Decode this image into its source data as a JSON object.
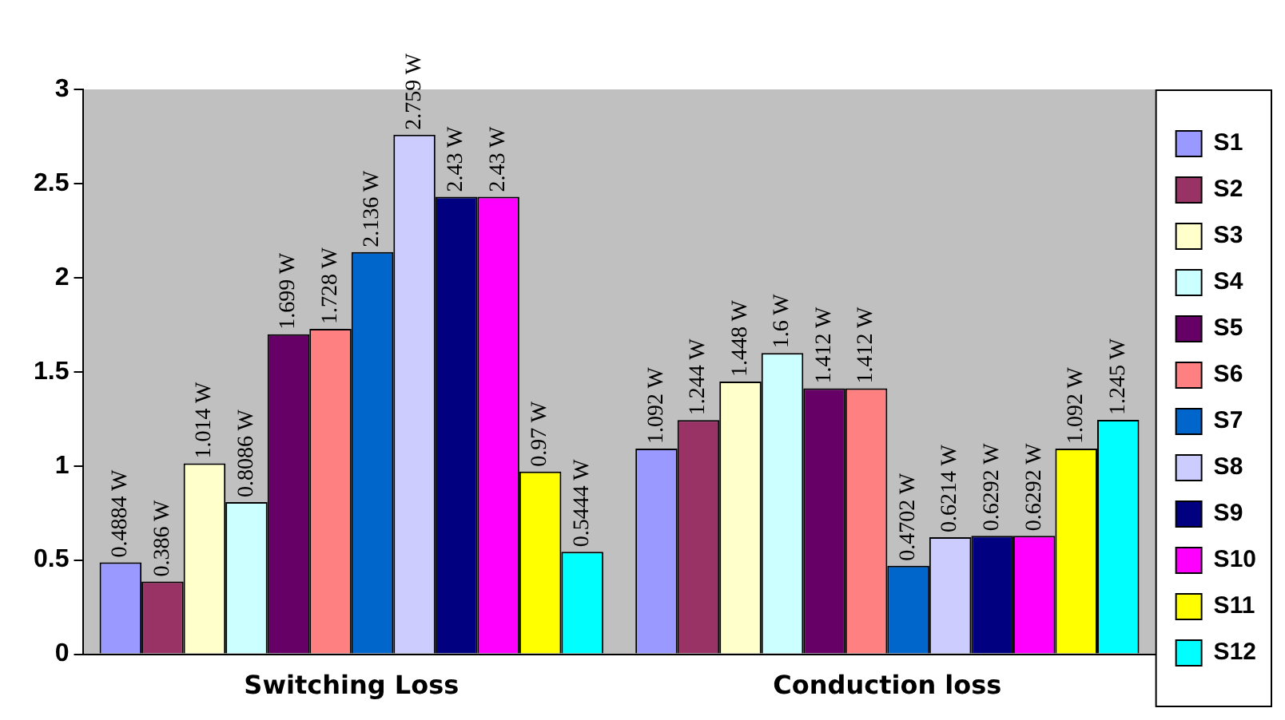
{
  "chart_data": {
    "type": "bar",
    "categories": [
      "Switching Loss",
      "Conduction loss"
    ],
    "series": [
      {
        "name": "S1",
        "color": "#9999ff",
        "values": [
          0.4884,
          1.092
        ],
        "value_labels": [
          "0.4884 W",
          "1.092 W"
        ]
      },
      {
        "name": "S2",
        "color": "#993366",
        "values": [
          0.386,
          1.244
        ],
        "value_labels": [
          "0.386 W",
          "1.244 W"
        ]
      },
      {
        "name": "S3",
        "color": "#ffffcc",
        "values": [
          1.014,
          1.448
        ],
        "value_labels": [
          "1.014 W",
          "1.448 W"
        ]
      },
      {
        "name": "S4",
        "color": "#ccffff",
        "values": [
          0.8086,
          1.6
        ],
        "value_labels": [
          "0.8086 W",
          "1.6 W"
        ]
      },
      {
        "name": "S5",
        "color": "#660066",
        "values": [
          1.699,
          1.412
        ],
        "value_labels": [
          "1.699 W",
          "1.412 W"
        ]
      },
      {
        "name": "S6",
        "color": "#ff8080",
        "values": [
          1.728,
          1.412
        ],
        "value_labels": [
          "1.728 W",
          "1.412 W"
        ]
      },
      {
        "name": "S7",
        "color": "#0066cc",
        "values": [
          2.136,
          0.4702
        ],
        "value_labels": [
          "2.136 W",
          "0.4702 W"
        ]
      },
      {
        "name": "S8",
        "color": "#ccccff",
        "values": [
          2.759,
          0.6214
        ],
        "value_labels": [
          "2.759 W",
          "0.6214 W"
        ]
      },
      {
        "name": "S9",
        "color": "#000080",
        "values": [
          2.43,
          0.6292
        ],
        "value_labels": [
          "2.43 W",
          "0.6292 W"
        ]
      },
      {
        "name": "S10",
        "color": "#ff00ff",
        "values": [
          2.43,
          0.6292
        ],
        "value_labels": [
          "2.43 W",
          "0.6292 W"
        ]
      },
      {
        "name": "S11",
        "color": "#ffff00",
        "values": [
          0.97,
          1.092
        ],
        "value_labels": [
          "0.97 W",
          "1.092 W"
        ]
      },
      {
        "name": "S12",
        "color": "#00ffff",
        "values": [
          0.5444,
          1.245
        ],
        "value_labels": [
          "0.5444 W",
          "1.245 W"
        ]
      }
    ],
    "ylim": [
      0,
      3
    ],
    "yticks": [
      0,
      0.5,
      1,
      1.5,
      2,
      2.5,
      3
    ],
    "grid": false,
    "legend": "right"
  }
}
